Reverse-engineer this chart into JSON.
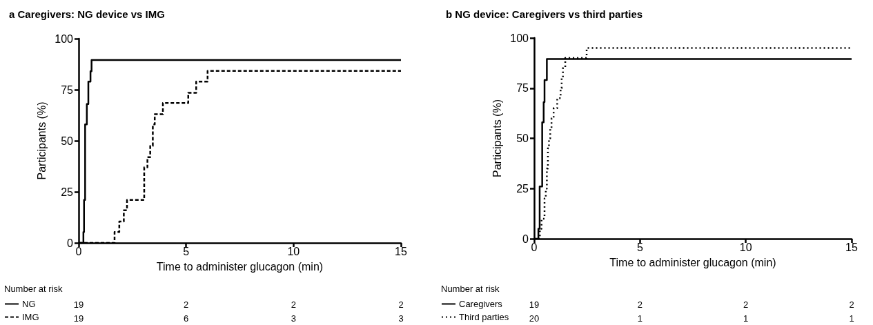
{
  "chart_data": [
    {
      "type": "step",
      "title": "a Caregivers: NG device vs IMG",
      "xlabel": "Time to administer glucagon (min)",
      "ylabel": "Participants (%)",
      "xlim": [
        0,
        15
      ],
      "xticks": [
        0,
        5,
        10,
        15
      ],
      "ylim": [
        0,
        100
      ],
      "yticks": [
        0,
        25,
        50,
        75,
        100
      ],
      "grid": false,
      "legend": "bottom left",
      "series": [
        {
          "name": "NG",
          "color": "#000000",
          "line_style": "solid",
          "x": [
            0,
            0.22,
            0.25,
            0.3,
            0.38,
            0.45,
            0.55,
            0.6,
            15
          ],
          "values": [
            0,
            5.3,
            21,
            58,
            68,
            79,
            84,
            89.5,
            89.5
          ]
        },
        {
          "name": "IMG",
          "color": "#000000",
          "line_style": "dashed",
          "x": [
            0,
            1.67,
            1.89,
            2.1,
            2.25,
            3.05,
            3.2,
            3.33,
            3.45,
            3.54,
            3.7,
            3.92,
            5.1,
            5.47,
            6.0,
            15
          ],
          "values": [
            0,
            5.3,
            10.5,
            16,
            21,
            37,
            42,
            47.5,
            58,
            63,
            63,
            68.5,
            73.5,
            79,
            84.2,
            84.2
          ]
        }
      ],
      "annotations": [
        "Number at risk",
        "19",
        "2",
        "2",
        "2",
        "19",
        "6",
        "3",
        "3"
      ]
    },
    {
      "type": "step",
      "title": "b NG device: Caregivers vs third parties",
      "xlabel": "Time to administer glucagon (min)",
      "ylabel": "Participants (%)",
      "xlim": [
        0,
        15
      ],
      "xticks": [
        0,
        5,
        10,
        15
      ],
      "ylim": [
        0,
        100
      ],
      "yticks": [
        0,
        25,
        50,
        75,
        100
      ],
      "grid": false,
      "legend": "bottom left",
      "series": [
        {
          "name": "Caregivers",
          "color": "#000000",
          "line_style": "solid",
          "x": [
            0,
            0.2,
            0.26,
            0.38,
            0.45,
            0.49,
            0.6,
            15
          ],
          "values": [
            0,
            5,
            26,
            58,
            68,
            79,
            89.5,
            89.5
          ]
        },
        {
          "name": "Third parties",
          "color": "#000000",
          "line_style": "dotted",
          "x": [
            0,
            0.27,
            0.35,
            0.49,
            0.55,
            0.6,
            0.65,
            0.7,
            0.76,
            0.82,
            0.92,
            1.09,
            1.25,
            1.3,
            1.36,
            1.47,
            2.48,
            15
          ],
          "values": [
            0,
            5,
            10,
            20,
            25,
            35,
            45,
            50,
            55,
            60,
            65,
            70,
            75,
            80,
            85,
            90,
            95,
            95
          ]
        }
      ],
      "annotations": [
        "Number at risk",
        "19",
        "2",
        "2",
        "2",
        "20",
        "1",
        "1",
        "1"
      ]
    }
  ]
}
